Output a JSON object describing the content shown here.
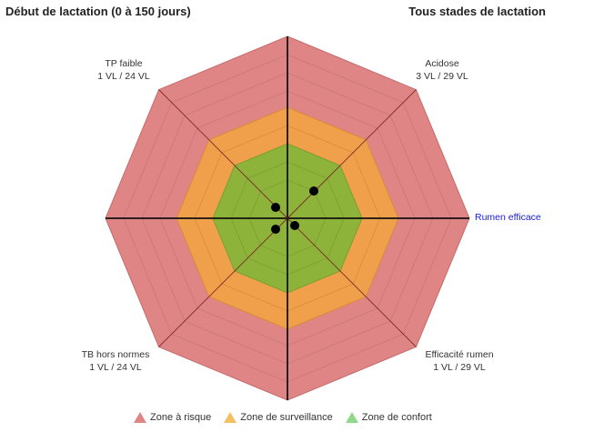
{
  "header": {
    "left": "Début de lactation (0 à 150 jours)",
    "right": "Tous stades de lactation"
  },
  "chart_data": {
    "type": "radar",
    "axes": [
      {
        "name": "TP faible",
        "sub": "1 VL / 24 VL"
      },
      {
        "name": "Acidose",
        "sub": "3 VL / 29 VL"
      },
      {
        "name": "Rumen efficace",
        "sub": ""
      },
      {
        "name": "Efficacité rumen",
        "sub": "1 VL / 29 VL"
      },
      {
        "name": "",
        "sub": ""
      },
      {
        "name": "TB hors normes",
        "sub": "1 VL / 24 VL"
      },
      {
        "name": "",
        "sub": ""
      },
      {
        "name": "",
        "sub": ""
      }
    ],
    "zones": [
      {
        "name": "Zone à risque",
        "color": "#e08585",
        "edge": "#c46a6a"
      },
      {
        "name": "Zone de surveillance",
        "color": "#f0a04b",
        "edge": "#d98a3a"
      },
      {
        "name": "Zone de confort",
        "color": "#8db33a",
        "edge": "#7a9f30"
      }
    ],
    "points": [
      {
        "x": 29,
        "y": 30
      },
      {
        "x": -13,
        "y": 12
      },
      {
        "x": -13,
        "y": -12
      },
      {
        "x": 8,
        "y": -8
      }
    ]
  },
  "legend_colors": {
    "risk": "#e08585",
    "surveillance": "#f5c060",
    "confort": "#8fd98a"
  }
}
